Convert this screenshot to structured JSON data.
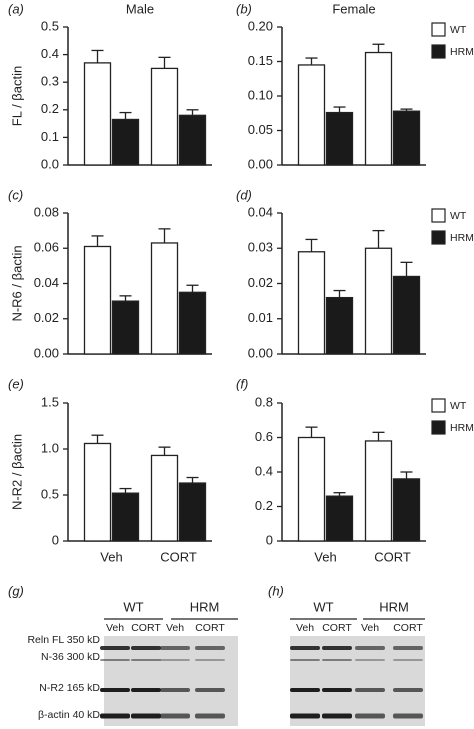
{
  "chart_data": [
    {
      "type": "bar",
      "panel": "(a)",
      "title": "Male",
      "ylabel": "FL / βactin",
      "categories": [
        null,
        null
      ],
      "series": [
        {
          "name": "WT",
          "color": "#ffffff",
          "values": [
            0.37,
            0.35
          ],
          "errors": [
            0.045,
            0.04
          ]
        },
        {
          "name": "HRM",
          "color": "#1a1a1a",
          "values": [
            0.165,
            0.18
          ],
          "errors": [
            0.025,
            0.02
          ]
        }
      ],
      "ylim": [
        0,
        0.5
      ],
      "yticks": [
        {
          "value": 0,
          "label": "0.0"
        },
        0.1,
        0.2,
        0.3,
        0.4,
        0.5
      ],
      "legend": false
    },
    {
      "type": "bar",
      "panel": "(b)",
      "title": "Female",
      "categories": [
        null,
        null
      ],
      "series": [
        {
          "name": "WT",
          "color": "#ffffff",
          "values": [
            0.145,
            0.163
          ],
          "errors": [
            0.01,
            0.012
          ]
        },
        {
          "name": "HRM",
          "color": "#1a1a1a",
          "values": [
            0.076,
            0.078
          ],
          "errors": [
            0.008,
            0.003
          ]
        }
      ],
      "ylim": [
        0,
        0.2
      ],
      "yticks": [
        {
          "value": 0,
          "label": "0.00"
        },
        0.05,
        {
          "value": 0.1,
          "label": "0.10"
        },
        0.15,
        {
          "value": 0.2,
          "label": "0.20"
        }
      ],
      "legend": true
    },
    {
      "type": "bar",
      "panel": "(c)",
      "ylabel": "N-R6 / βactin",
      "categories": [
        null,
        null
      ],
      "series": [
        {
          "name": "WT",
          "color": "#ffffff",
          "values": [
            0.061,
            0.063
          ],
          "errors": [
            0.006,
            0.008
          ]
        },
        {
          "name": "HRM",
          "color": "#1a1a1a",
          "values": [
            0.03,
            0.035
          ],
          "errors": [
            0.003,
            0.004
          ]
        }
      ],
      "ylim": [
        0,
        0.08
      ],
      "yticks": [
        {
          "value": 0,
          "label": "0.00"
        },
        0.02,
        0.04,
        0.06,
        0.08
      ],
      "legend": false
    },
    {
      "type": "bar",
      "panel": "(d)",
      "categories": [
        null,
        null
      ],
      "series": [
        {
          "name": "WT",
          "color": "#ffffff",
          "values": [
            0.029,
            0.03
          ],
          "errors": [
            0.0035,
            0.005
          ]
        },
        {
          "name": "HRM",
          "color": "#1a1a1a",
          "values": [
            0.016,
            0.022
          ],
          "errors": [
            0.002,
            0.004
          ]
        }
      ],
      "ylim": [
        0,
        0.04
      ],
      "yticks": [
        {
          "value": 0,
          "label": "0.00"
        },
        0.01,
        0.02,
        0.03,
        0.04
      ],
      "legend": true
    },
    {
      "type": "bar",
      "panel": "(e)",
      "ylabel": "N-R2 / βactin",
      "categories": [
        "Veh",
        "CORT"
      ],
      "series": [
        {
          "name": "WT",
          "color": "#ffffff",
          "values": [
            1.06,
            0.93
          ],
          "errors": [
            0.09,
            0.09
          ]
        },
        {
          "name": "HRM",
          "color": "#1a1a1a",
          "values": [
            0.52,
            0.63
          ],
          "errors": [
            0.05,
            0.06
          ]
        }
      ],
      "ylim": [
        0,
        1.5
      ],
      "yticks": [
        0,
        0.5,
        {
          "value": 1,
          "label": "1.0"
        },
        1.5
      ],
      "legend": false
    },
    {
      "type": "bar",
      "panel": "(f)",
      "categories": [
        "Veh",
        "CORT"
      ],
      "series": [
        {
          "name": "WT",
          "color": "#ffffff",
          "values": [
            0.6,
            0.58
          ],
          "errors": [
            0.06,
            0.05
          ]
        },
        {
          "name": "HRM",
          "color": "#1a1a1a",
          "values": [
            0.26,
            0.36
          ],
          "errors": [
            0.02,
            0.04
          ]
        }
      ],
      "ylim": [
        0,
        0.8
      ],
      "yticks": [
        0,
        0.2,
        0.4,
        0.6,
        0.8
      ],
      "legend": true
    }
  ],
  "blots": [
    {
      "panel": "(g)",
      "groups": [
        "WT",
        "HRM"
      ],
      "lanes": [
        "Veh",
        "CORT",
        "Veh",
        "CORT"
      ],
      "bands": [
        "Reln FL 350 kD",
        "N-36 300 kD",
        "N-R2 165 kD",
        "β-actin 40 kD"
      ]
    },
    {
      "panel": "(h)",
      "groups": [
        "WT",
        "HRM"
      ],
      "lanes": [
        "Veh",
        "CORT",
        "Veh",
        "CORT"
      ]
    }
  ]
}
